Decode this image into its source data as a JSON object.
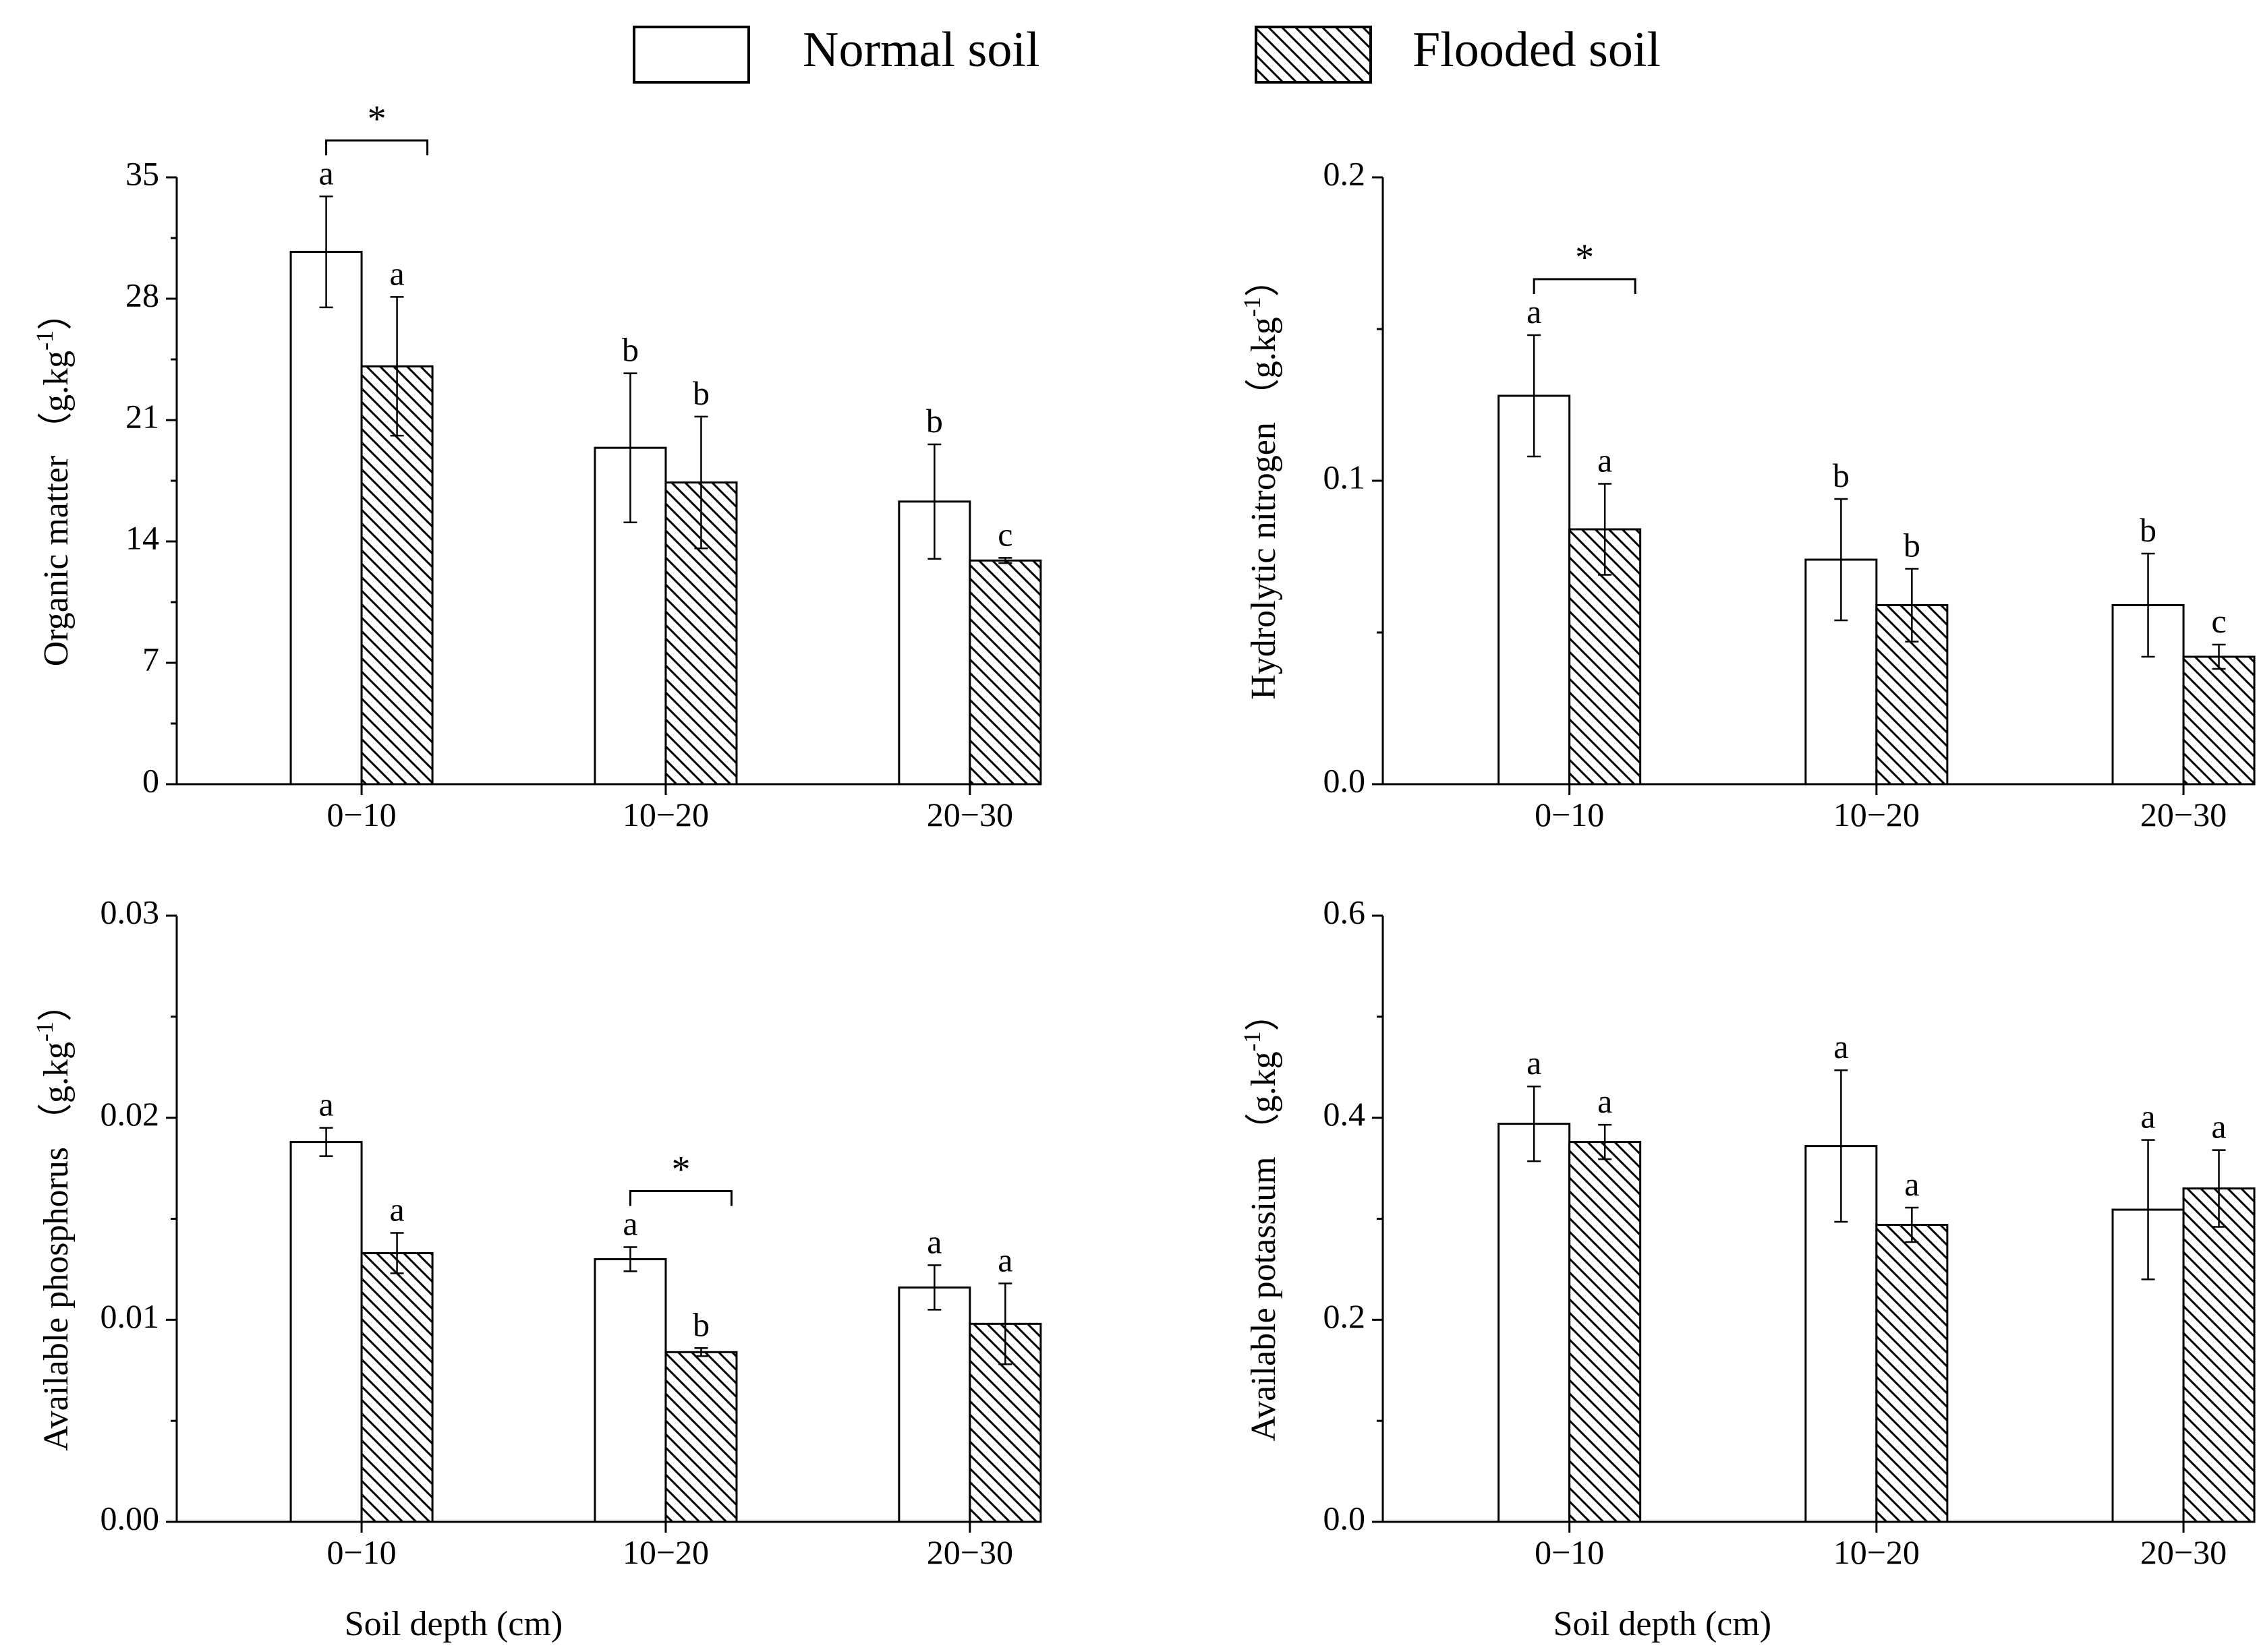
{
  "legend": {
    "items": [
      {
        "name": "Normal soil",
        "pattern": "none"
      },
      {
        "name": "Flooded soil",
        "pattern": "hatch"
      }
    ]
  },
  "colors": {
    "ink": "#000000",
    "paper": "#ffffff"
  },
  "chart_data": [
    {
      "type": "bar",
      "ylabel": "Organic matter",
      "unit_text": "（g.kg",
      "unit_sup": "-1",
      "unit_close": "）",
      "xlabel": "",
      "categories": [
        "0−10",
        "10−20",
        "20−30"
      ],
      "ylim": [
        0,
        35
      ],
      "yticks": [
        "0",
        "7",
        "14",
        "21",
        "28",
        "35"
      ],
      "series": [
        {
          "name": "Normal soil",
          "values": [
            30.7,
            19.4,
            16.3
          ],
          "errors": [
            3.2,
            4.3,
            3.3
          ],
          "labels": [
            "a",
            "b",
            "b"
          ]
        },
        {
          "name": "Flooded soil",
          "values": [
            24.1,
            17.4,
            12.9
          ],
          "errors": [
            4.0,
            3.8,
            0.15
          ],
          "labels": [
            "a",
            "b",
            "c"
          ]
        }
      ],
      "significance": [
        {
          "category": 0,
          "label": "*"
        }
      ]
    },
    {
      "type": "bar",
      "ylabel": "Hydrolytic nitrogen",
      "unit_text": "（g.kg",
      "unit_sup": "-1",
      "unit_close": "）",
      "xlabel": "",
      "categories": [
        "0−10",
        "10−20",
        "20−30"
      ],
      "ylim": [
        0,
        0.2
      ],
      "yticks": [
        "0.0",
        "0.1",
        "0.2"
      ],
      "series": [
        {
          "name": "Normal soil",
          "values": [
            0.128,
            0.074,
            0.059
          ],
          "errors": [
            0.02,
            0.02,
            0.017
          ],
          "labels": [
            "a",
            "b",
            "b"
          ]
        },
        {
          "name": "Flooded soil",
          "values": [
            0.084,
            0.059,
            0.042
          ],
          "errors": [
            0.015,
            0.012,
            0.004
          ],
          "labels": [
            "a",
            "b",
            "c"
          ]
        }
      ],
      "significance": [
        {
          "category": 0,
          "label": "*"
        }
      ]
    },
    {
      "type": "bar",
      "ylabel": "Available phosphorus",
      "unit_text": "（g.kg",
      "unit_sup": "-1",
      "unit_close": "）",
      "xlabel": "Soil depth (cm)",
      "categories": [
        "0−10",
        "10−20",
        "20−30"
      ],
      "ylim": [
        0,
        0.03
      ],
      "yticks": [
        "0.00",
        "0.01",
        "0.02",
        "0.03"
      ],
      "series": [
        {
          "name": "Normal soil",
          "values": [
            0.0188,
            0.013,
            0.0116
          ],
          "errors": [
            0.0007,
            0.0006,
            0.0011
          ],
          "labels": [
            "a",
            "a",
            "a"
          ]
        },
        {
          "name": "Flooded soil",
          "values": [
            0.0133,
            0.0084,
            0.0098
          ],
          "errors": [
            0.001,
            0.0002,
            0.002
          ],
          "labels": [
            "a",
            "b",
            "a"
          ]
        }
      ],
      "significance": [
        {
          "category": 1,
          "label": "*"
        }
      ]
    },
    {
      "type": "bar",
      "ylabel": "Available potassium",
      "unit_text": "（g.kg",
      "unit_sup": "-1",
      "unit_close": "）",
      "xlabel": "Soil depth (cm)",
      "categories": [
        "0−10",
        "10−20",
        "20−30"
      ],
      "ylim": [
        0,
        0.6
      ],
      "yticks": [
        "0.0",
        "0.2",
        "0.4",
        "0.6"
      ],
      "series": [
        {
          "name": "Normal soil",
          "values": [
            0.394,
            0.372,
            0.309
          ],
          "errors": [
            0.037,
            0.075,
            0.069
          ],
          "labels": [
            "a",
            "a",
            "a"
          ]
        },
        {
          "name": "Flooded soil",
          "values": [
            0.376,
            0.294,
            0.33
          ],
          "errors": [
            0.017,
            0.017,
            0.038
          ],
          "labels": [
            "a",
            "a",
            "a"
          ]
        }
      ],
      "significance": []
    }
  ]
}
